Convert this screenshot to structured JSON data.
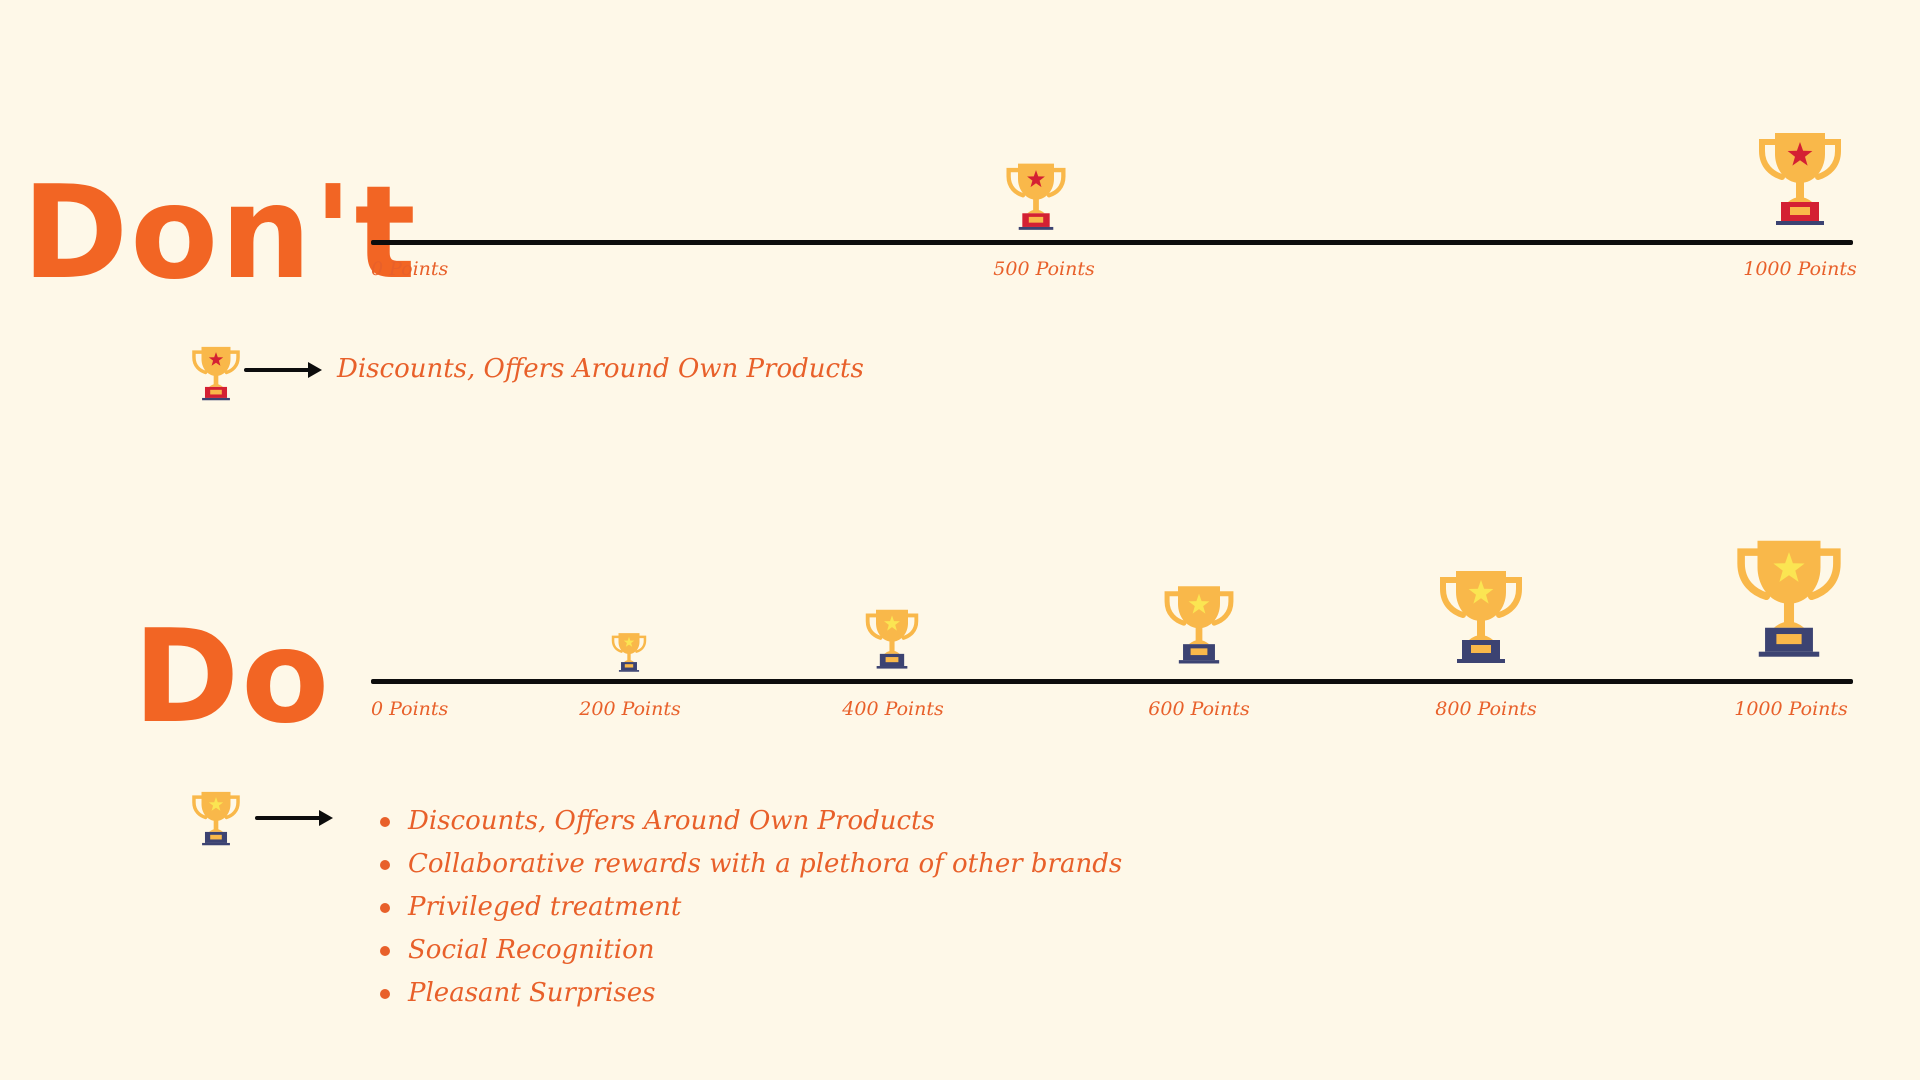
{
  "colors": {
    "background": "#fef8e8",
    "accent": "#f26524",
    "trophy_gold": "#f9b84a",
    "dont_base": "#d42033",
    "do_base": "#3c4372",
    "dont_star": "#d42033",
    "do_star": "#fbe552"
  },
  "dont": {
    "heading": "Don't",
    "ticks": [
      {
        "label": "0 Points",
        "trophy": false
      },
      {
        "label": "500 Points",
        "trophy": true,
        "icon": "trophy-red-star-icon"
      },
      {
        "label": "1000 Points",
        "trophy": true,
        "icon": "trophy-red-star-icon"
      }
    ],
    "legend": {
      "icon": "trophy-red-star-icon",
      "arrow": "arrow-right-icon",
      "text": "Discounts, Offers Around Own Products"
    }
  },
  "do": {
    "heading": "Do",
    "ticks": [
      {
        "label": "0 Points",
        "trophy": false
      },
      {
        "label": "200 Points",
        "trophy": true,
        "icon": "trophy-yellow-star-icon"
      },
      {
        "label": "400 Points",
        "trophy": true,
        "icon": "trophy-yellow-star-icon"
      },
      {
        "label": "600 Points",
        "trophy": true,
        "icon": "trophy-yellow-star-icon"
      },
      {
        "label": "800 Points",
        "trophy": true,
        "icon": "trophy-yellow-star-icon"
      },
      {
        "label": "1000 Points",
        "trophy": true,
        "icon": "trophy-yellow-star-icon"
      }
    ],
    "legend": {
      "icon": "trophy-yellow-star-icon",
      "arrow": "arrow-right-icon",
      "items": [
        "Discounts, Offers Around Own Products",
        "Collaborative rewards with a plethora of other brands",
        "Privileged treatment",
        "Social Recognition",
        "Pleasant Surprises"
      ]
    }
  }
}
